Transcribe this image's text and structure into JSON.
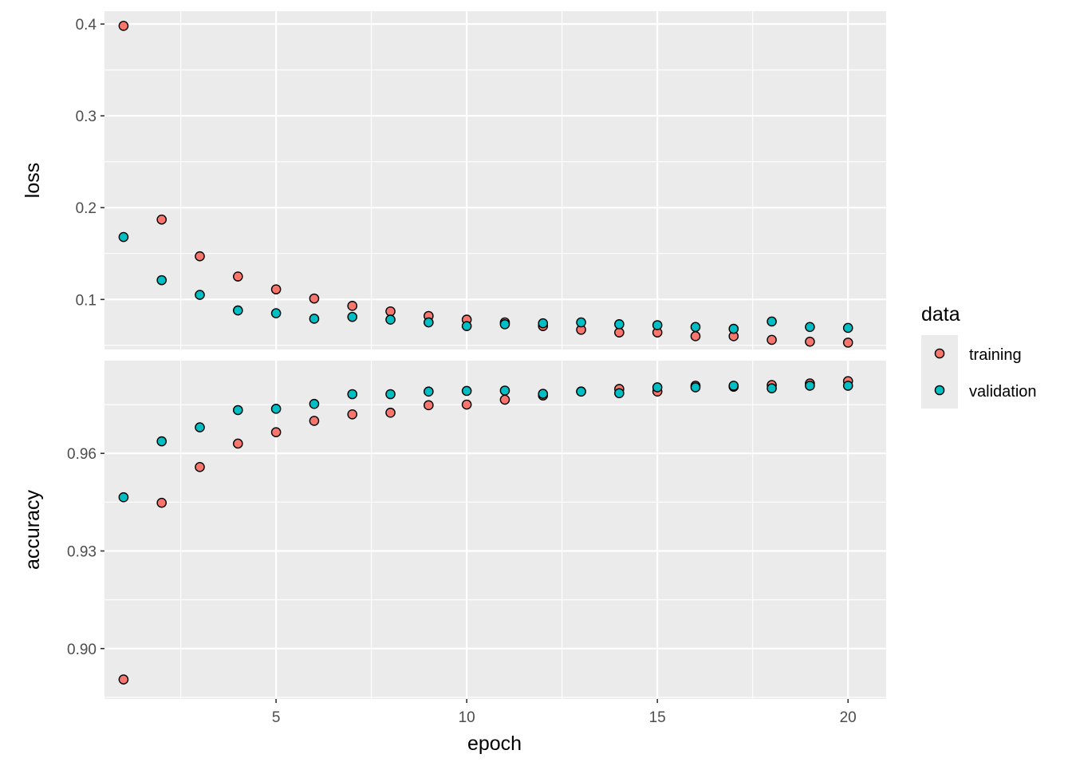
{
  "chart_data": {
    "type": "scatter",
    "xlabel": "epoch",
    "x": [
      1,
      2,
      3,
      4,
      5,
      6,
      7,
      8,
      9,
      10,
      11,
      12,
      13,
      14,
      15,
      16,
      17,
      18,
      19,
      20
    ],
    "x_ticks": [
      5,
      10,
      15,
      20
    ],
    "xlim": [
      0.5,
      21
    ],
    "grid": true,
    "legend": {
      "title": "data",
      "placement": "right",
      "entries": [
        "training",
        "validation"
      ]
    },
    "colors": {
      "training": "#F8766D",
      "validation": "#00BFC4",
      "panel_bg": "#EBEBEB",
      "grid": "#FFFFFF"
    },
    "panels": [
      {
        "ylabel": "loss",
        "ylim": [
          0.0455,
          0.414
        ],
        "y_ticks": [
          0.1,
          0.2,
          0.3,
          0.4
        ],
        "y_tick_labels": [
          "0.1",
          "0.2",
          "0.3",
          "0.4"
        ],
        "series": [
          {
            "name": "training",
            "values": [
              0.398,
              0.187,
              0.147,
              0.125,
              0.111,
              0.101,
              0.093,
              0.087,
              0.082,
              0.078,
              0.075,
              0.071,
              0.067,
              0.064,
              0.064,
              0.06,
              0.06,
              0.056,
              0.054,
              0.053
            ]
          },
          {
            "name": "validation",
            "values": [
              0.168,
              0.121,
              0.105,
              0.088,
              0.085,
              0.079,
              0.081,
              0.078,
              0.075,
              0.071,
              0.073,
              0.074,
              0.075,
              0.073,
              0.072,
              0.07,
              0.068,
              0.076,
              0.07,
              0.069
            ]
          }
        ]
      },
      {
        "ylabel": "accuracy",
        "ylim": [
          0.8845,
          0.9885
        ],
        "y_ticks": [
          0.9,
          0.93,
          0.96
        ],
        "y_tick_labels": [
          "0.90",
          "0.93",
          "0.96"
        ],
        "series": [
          {
            "name": "training",
            "values": [
              0.8905,
              0.9448,
              0.9558,
              0.963,
              0.9665,
              0.97,
              0.972,
              0.9725,
              0.9748,
              0.975,
              0.9765,
              0.9778,
              0.979,
              0.9798,
              0.979,
              0.9808,
              0.9805,
              0.981,
              0.9815,
              0.9822
            ]
          },
          {
            "name": "validation",
            "values": [
              0.9465,
              0.9637,
              0.968,
              0.9733,
              0.9737,
              0.9752,
              0.9782,
              0.9782,
              0.979,
              0.9792,
              0.9793,
              0.9783,
              0.979,
              0.9785,
              0.9803,
              0.9803,
              0.9808,
              0.98,
              0.9808,
              0.9808
            ]
          }
        ]
      }
    ]
  }
}
